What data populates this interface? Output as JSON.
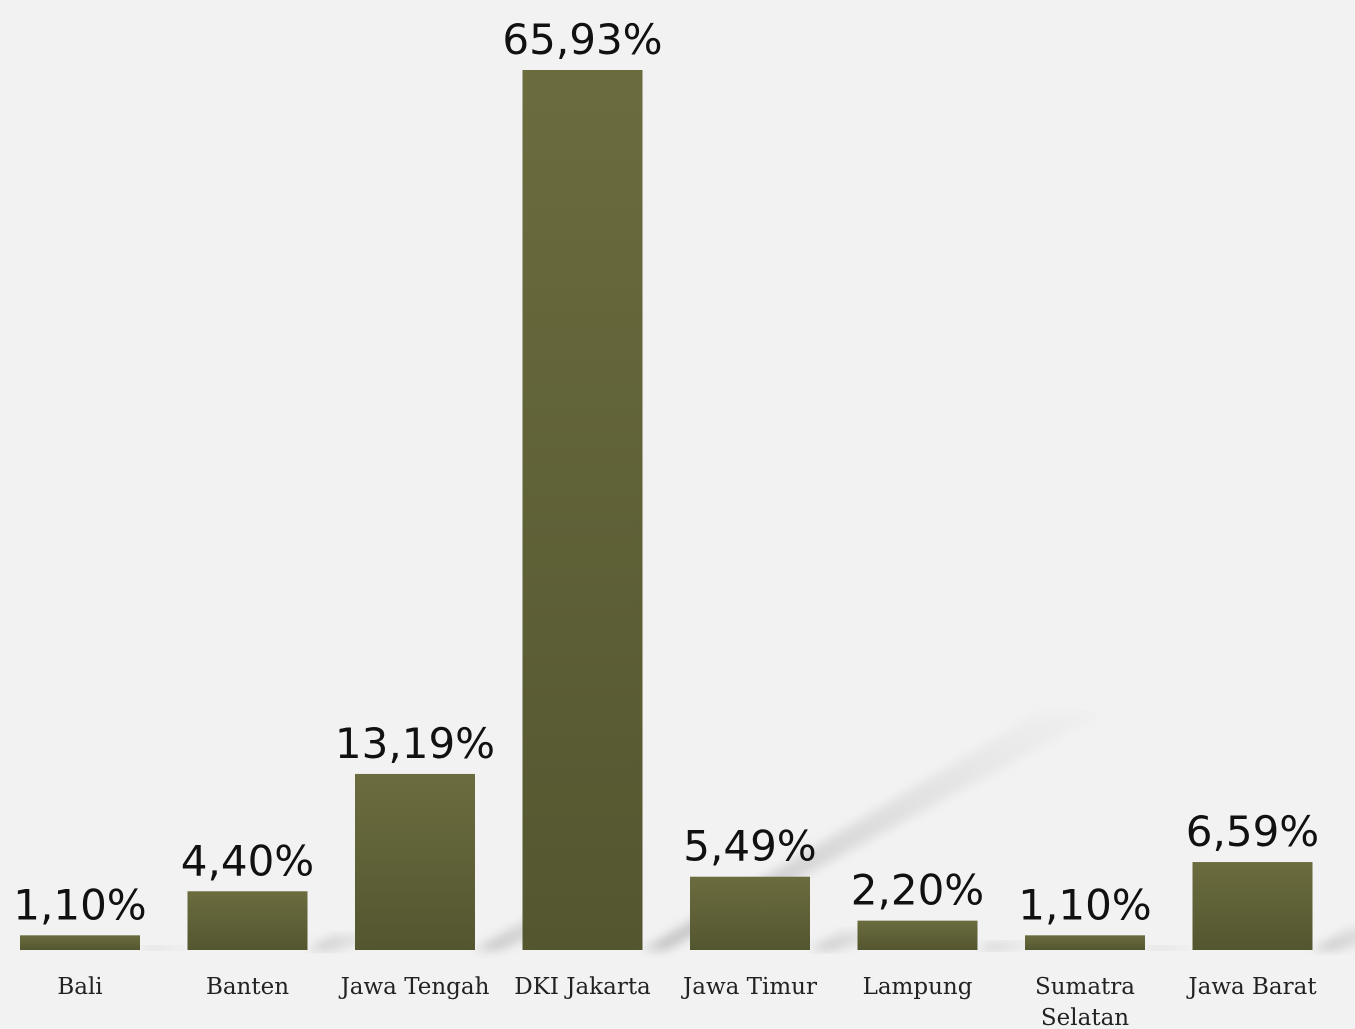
{
  "chart_data": {
    "type": "bar",
    "categories": [
      "Bali",
      "Banten",
      "Jawa Tengah",
      "DKI Jakarta",
      "Jawa Timur",
      "Lampung",
      "Sumatra Selatan",
      "Jawa Barat"
    ],
    "category_lines": [
      [
        "Bali"
      ],
      [
        "Banten"
      ],
      [
        "Jawa Tengah"
      ],
      [
        "DKI Jakarta"
      ],
      [
        "Jawa Timur"
      ],
      [
        "Lampung"
      ],
      [
        "Sumatra",
        "Selatan"
      ],
      [
        "Jawa Barat"
      ]
    ],
    "values": [
      1.1,
      4.4,
      13.19,
      65.93,
      5.49,
      2.2,
      1.1,
      6.59
    ],
    "value_labels": [
      "1,10%",
      "4,40%",
      "13,19%",
      "65,93%",
      "5,49%",
      "2,20%",
      "1,10%",
      "6,59%"
    ],
    "ylim": [
      0,
      65.93
    ],
    "grid": false,
    "legend": "none",
    "colors": {
      "bar_top": "#6b6c3e",
      "bar_bottom": "#545630",
      "background": "#f2f2f2",
      "shadow": "#b3b3b3"
    }
  }
}
